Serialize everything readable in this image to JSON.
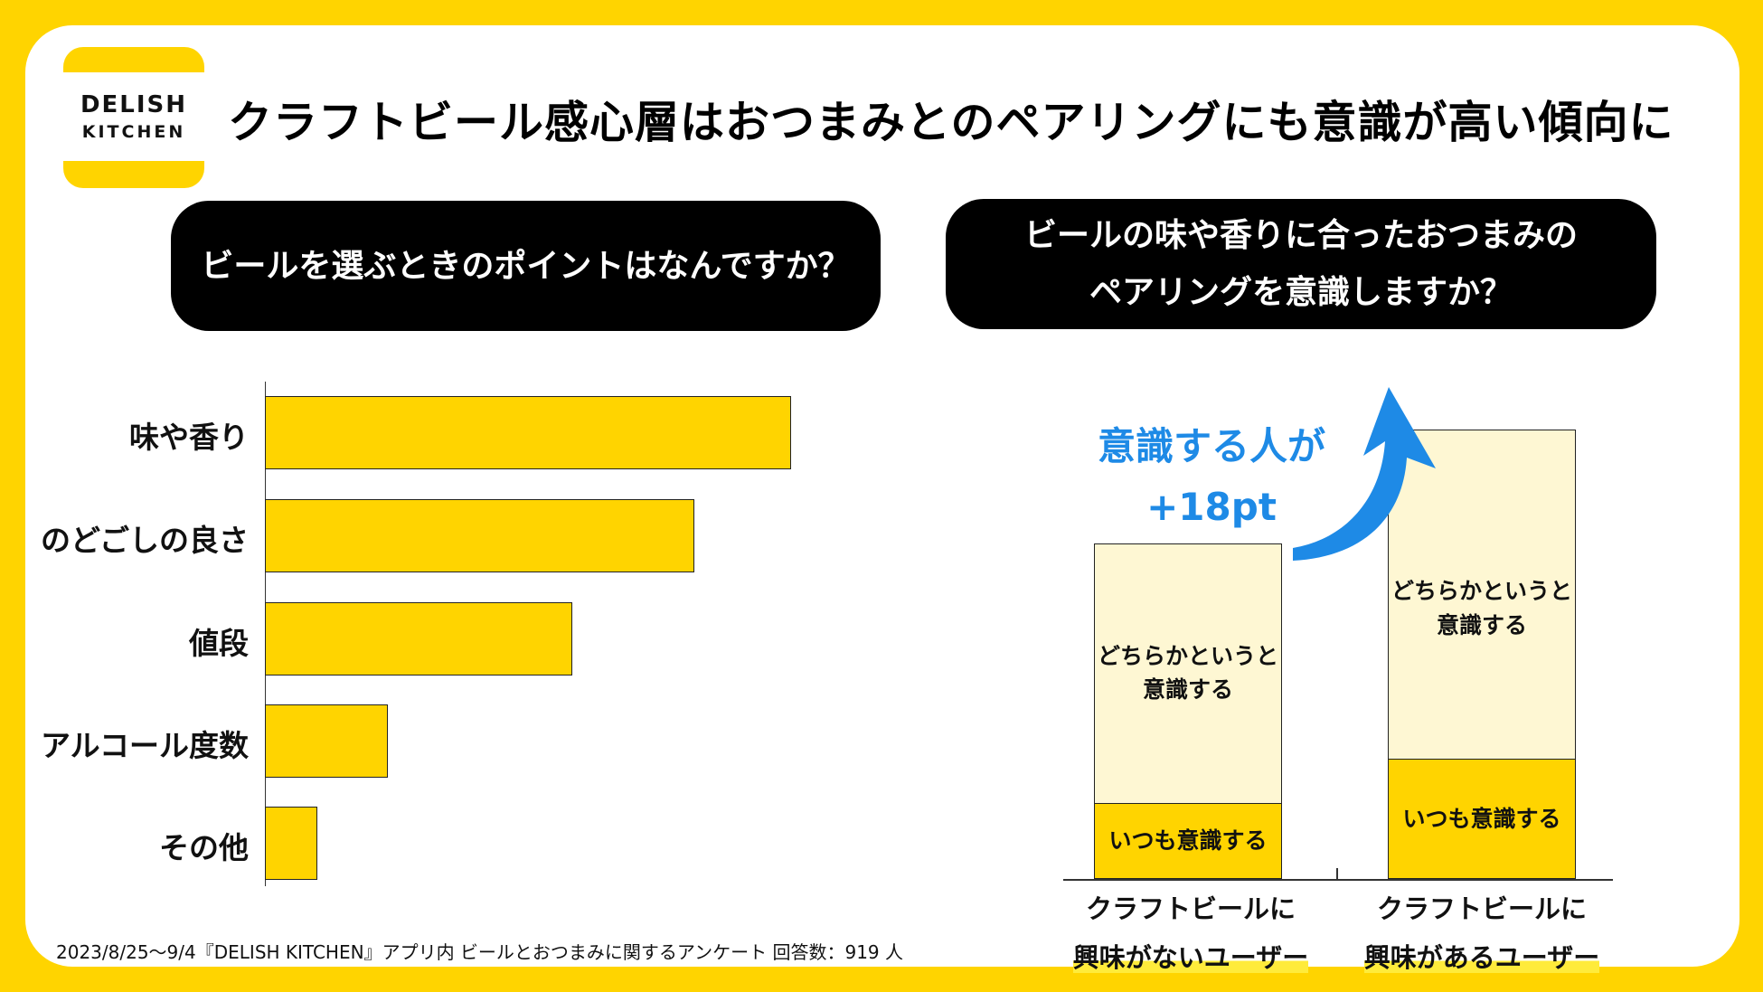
{
  "logo": {
    "line1": "DELISH",
    "line2": "KITCHEN"
  },
  "title": "クラフトビール感心層はおつまみとのペアリングにも意識が高い傾向に",
  "left_question": "ビールを選ぶときのポイントはなんですか？",
  "right_question": {
    "line1": "ビールの味や香りに合ったおつまみの",
    "line2": "ペアリングを意識しますか？"
  },
  "annotation": {
    "line1": "意識する人が",
    "line2": "+18pt"
  },
  "footnote": "2023/8/25〜9/4『DELISH KITCHEN』アプリ内 ビールとおつまみに関するアンケート 回答数：919 人",
  "colors": {
    "background": "#FFD400",
    "bar": "#FFD400",
    "light_segment": "#FEF7D3",
    "accent_blue": "#1E8AE6"
  },
  "chart_data": [
    {
      "type": "bar",
      "orientation": "horizontal",
      "title": "ビールを選ぶときのポイントはなんですか？",
      "categories": [
        "味や香り",
        "のどごしの良さ",
        "値段",
        "アルコール度数",
        "その他"
      ],
      "values": [
        60,
        49,
        35,
        14,
        6
      ]
    },
    {
      "type": "bar",
      "stacked": true,
      "title": "ビールの味や香りに合ったおつまみのペアリングを意識しますか？",
      "categories": [
        {
          "line1": "クラフトビールに",
          "line2": "興味がないユーザー"
        },
        {
          "line1": "クラフトビールに",
          "line2": "興味があるユーザー"
        }
      ],
      "series": [
        {
          "name": "いつも意識する",
          "values": [
            12,
            19
          ]
        },
        {
          "name": "どちらかというと意識する",
          "values": [
            41,
            52
          ]
        }
      ],
      "segment_labels": {
        "always": "いつも意識する",
        "somewhat_line1": "どちらかというと",
        "somewhat_line2": "意識する"
      }
    }
  ]
}
